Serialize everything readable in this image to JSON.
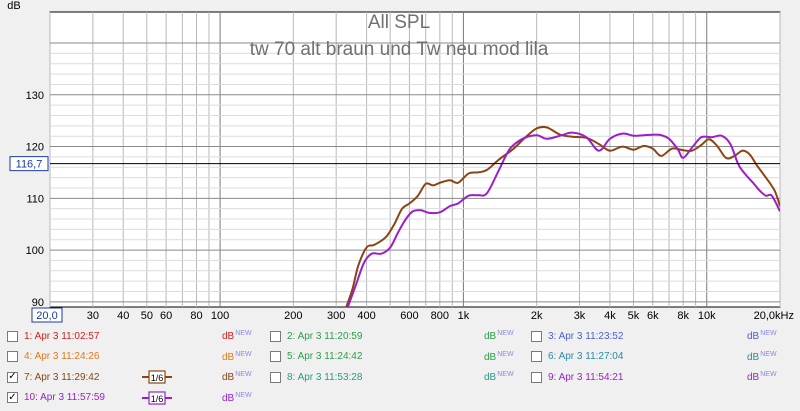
{
  "chart_data": {
    "type": "line",
    "title": "All SPL",
    "subtitle": "tw 70 alt braun und Tw neu mod lila",
    "ylabel": "dB",
    "xscale": "log",
    "xlim": [
      20,
      20000
    ],
    "ylim": [
      89,
      146
    ],
    "x_tick_labels": [
      {
        "x": 20,
        "label": "20,0"
      },
      {
        "x": 30,
        "label": "30"
      },
      {
        "x": 40,
        "label": "40"
      },
      {
        "x": 50,
        "label": "50"
      },
      {
        "x": 60,
        "label": "60"
      },
      {
        "x": 80,
        "label": "80"
      },
      {
        "x": 100,
        "label": "100"
      },
      {
        "x": 200,
        "label": "200"
      },
      {
        "x": 300,
        "label": "300"
      },
      {
        "x": 400,
        "label": "400"
      },
      {
        "x": 600,
        "label": "600"
      },
      {
        "x": 800,
        "label": "800"
      },
      {
        "x": 1000,
        "label": "1k"
      },
      {
        "x": 2000,
        "label": "2k"
      },
      {
        "x": 3000,
        "label": "3k"
      },
      {
        "x": 4000,
        "label": "4k"
      },
      {
        "x": 5000,
        "label": "5k"
      },
      {
        "x": 6000,
        "label": "6k"
      },
      {
        "x": 8000,
        "label": "8k"
      },
      {
        "x": 10000,
        "label": "10k"
      },
      {
        "x": 20000,
        "label": "20,0kHz"
      }
    ],
    "y_tick_labels": [
      {
        "y": 90,
        "label": "90"
      },
      {
        "y": 100,
        "label": "100"
      },
      {
        "y": 110,
        "label": "110"
      },
      {
        "y": 120,
        "label": "120"
      },
      {
        "y": 130,
        "label": "130"
      }
    ],
    "cursor": {
      "y": 116.7,
      "label": "116,7"
    },
    "grid": true,
    "series": [
      {
        "name": "7: Apr 3 11:29:42",
        "color": "#8b4513",
        "points": [
          [
            330,
            89
          ],
          [
            350,
            92.5
          ],
          [
            370,
            97
          ],
          [
            400,
            100.5
          ],
          [
            430,
            101
          ],
          [
            480,
            102.5
          ],
          [
            520,
            105
          ],
          [
            560,
            108
          ],
          [
            600,
            109
          ],
          [
            650,
            110.5
          ],
          [
            700,
            112.8
          ],
          [
            750,
            112.5
          ],
          [
            800,
            113
          ],
          [
            880,
            113.5
          ],
          [
            950,
            113
          ],
          [
            1050,
            114.8
          ],
          [
            1150,
            115
          ],
          [
            1250,
            115.5
          ],
          [
            1400,
            117.5
          ],
          [
            1600,
            119.5
          ],
          [
            1800,
            121.8
          ],
          [
            2000,
            123.5
          ],
          [
            2200,
            123.7
          ],
          [
            2500,
            122.3
          ],
          [
            2800,
            121.9
          ],
          [
            3200,
            121.7
          ],
          [
            3600,
            120.5
          ],
          [
            4000,
            119.2
          ],
          [
            4500,
            120
          ],
          [
            5000,
            119.4
          ],
          [
            5500,
            120.1
          ],
          [
            6000,
            119.6
          ],
          [
            6500,
            118.2
          ],
          [
            7200,
            119.6
          ],
          [
            8000,
            119.3
          ],
          [
            8700,
            119.2
          ],
          [
            9500,
            120.3
          ],
          [
            10200,
            121.4
          ],
          [
            11000,
            120.2
          ],
          [
            12000,
            117.8
          ],
          [
            13000,
            118.2
          ],
          [
            14000,
            119.2
          ],
          [
            15000,
            118.5
          ],
          [
            16000,
            116.5
          ],
          [
            17500,
            114
          ],
          [
            19000,
            111.5
          ],
          [
            20000,
            108.5
          ]
        ]
      },
      {
        "name": "10: Apr 3 11:57:59",
        "color": "#9b1fc9",
        "points": [
          [
            335,
            89
          ],
          [
            360,
            93
          ],
          [
            390,
            97.5
          ],
          [
            420,
            99.3
          ],
          [
            460,
            99.3
          ],
          [
            500,
            100.5
          ],
          [
            540,
            103.5
          ],
          [
            580,
            106
          ],
          [
            620,
            107.5
          ],
          [
            670,
            107.7
          ],
          [
            720,
            107.2
          ],
          [
            800,
            107.3
          ],
          [
            880,
            108.5
          ],
          [
            950,
            109
          ],
          [
            1050,
            110.5
          ],
          [
            1150,
            110.6
          ],
          [
            1250,
            111
          ],
          [
            1400,
            115.5
          ],
          [
            1550,
            119.5
          ],
          [
            1750,
            121.5
          ],
          [
            2000,
            122.2
          ],
          [
            2200,
            121.5
          ],
          [
            2500,
            122.1
          ],
          [
            2800,
            122.7
          ],
          [
            3200,
            121.8
          ],
          [
            3600,
            119.2
          ],
          [
            4000,
            121.5
          ],
          [
            4500,
            122.5
          ],
          [
            5000,
            122.1
          ],
          [
            5500,
            122.2
          ],
          [
            6000,
            122.3
          ],
          [
            6500,
            122.2
          ],
          [
            7000,
            121.5
          ],
          [
            7600,
            119.5
          ],
          [
            8000,
            117.8
          ],
          [
            8700,
            119.8
          ],
          [
            9500,
            121.8
          ],
          [
            10500,
            121.8
          ],
          [
            11500,
            122.1
          ],
          [
            12500,
            120.5
          ],
          [
            13500,
            116.5
          ],
          [
            14500,
            114.5
          ],
          [
            15500,
            113
          ],
          [
            16500,
            111.5
          ],
          [
            17500,
            110.5
          ],
          [
            18500,
            110.5
          ],
          [
            20000,
            107.5
          ]
        ]
      }
    ]
  },
  "legend": {
    "items": [
      {
        "label": "1: Apr 3 11:02:57",
        "color": "#cc2222",
        "checked": false,
        "smoothing": "",
        "unit": "dB",
        "badge": "NEW"
      },
      {
        "label": "2: Apr 3 11:20:59",
        "color": "#2aa04a",
        "checked": false,
        "smoothing": "",
        "unit": "dB",
        "badge": "NEW"
      },
      {
        "label": "3: Apr 3 11:23:52",
        "color": "#4a5fd0",
        "checked": false,
        "smoothing": "",
        "unit": "dB",
        "badge": "NEW"
      },
      {
        "label": "4: Apr 3 11:24:26",
        "color": "#e07a1a",
        "checked": false,
        "smoothing": "",
        "unit": "dB",
        "badge": "NEW"
      },
      {
        "label": "5: Apr 3 11:24:42",
        "color": "#2aa04a",
        "checked": false,
        "smoothing": "",
        "unit": "dB",
        "badge": "NEW"
      },
      {
        "label": "6: Apr 3 11:27:04",
        "color": "#2a8aa8",
        "checked": false,
        "smoothing": "",
        "unit": "dB",
        "badge": "NEW"
      },
      {
        "label": "7: Apr 3 11:29:42",
        "color": "#8b4513",
        "checked": true,
        "smoothing": "1/6",
        "unit": "dB",
        "badge": "NEW"
      },
      {
        "label": "8: Apr 3 11:53:28",
        "color": "#2a9a88",
        "checked": false,
        "smoothing": "",
        "unit": "dB",
        "badge": "NEW"
      },
      {
        "label": "9: Apr 3 11:54:21",
        "color": "#9b1fc9",
        "checked": false,
        "smoothing": "",
        "unit": "dB",
        "badge": "NEW"
      },
      {
        "label": "10: Apr 3 11:57:59",
        "color": "#9b1fc9",
        "checked": true,
        "smoothing": "1/6",
        "unit": "dB",
        "badge": "NEW"
      }
    ]
  }
}
